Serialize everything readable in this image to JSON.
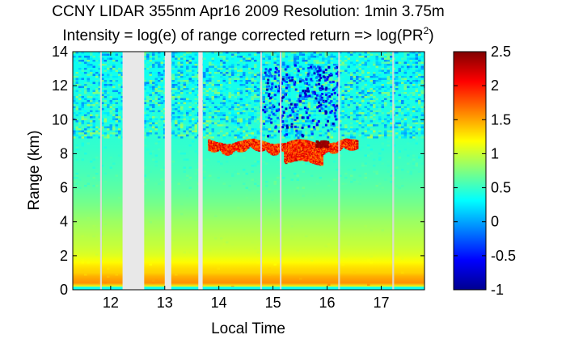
{
  "chart_data": {
    "type": "heatmap",
    "title_line1": "CCNY LIDAR 355nm Apr16 2009 Resolution: 1min 3.75m",
    "title_line2_prefix": "Intensity = log(e) of range corrected return => log(PR",
    "title_line2_superscript": "2",
    "title_line2_suffix": ")",
    "xlabel": "Local Time",
    "ylabel": "Range (km)",
    "xlim": [
      11.3,
      17.8
    ],
    "ylim": [
      0,
      14
    ],
    "xticks": [
      12,
      13,
      14,
      15,
      16,
      17
    ],
    "xtick_labels": [
      "12",
      "13",
      "14",
      "15",
      "16",
      "17"
    ],
    "yticks": [
      0,
      2,
      4,
      6,
      8,
      10,
      12,
      14
    ],
    "ytick_labels": [
      "0",
      "2",
      "4",
      "6",
      "8",
      "10",
      "12",
      "14"
    ],
    "colorbar": {
      "clim": [
        -1,
        2.5
      ],
      "ticks": [
        -1,
        -0.5,
        0,
        0.5,
        1,
        1.5,
        2,
        2.5
      ],
      "tick_labels": [
        "-1",
        "-0.5",
        "0",
        "0.5",
        "1",
        "1.5",
        "2",
        "2.5"
      ],
      "colormap": "jet"
    },
    "data_gaps_hours": [
      [
        12.22,
        12.62
      ],
      [
        13.0,
        13.12
      ],
      [
        13.62,
        13.7
      ]
    ],
    "thin_gaps_hours": [
      11.82,
      14.78,
      15.14,
      16.22,
      17.22
    ],
    "cloud_layer": {
      "time_range": [
        13.8,
        16.55
      ],
      "base_km": 7.4,
      "top_km": 8.8,
      "peak_value": 2.5
    },
    "intensity_profile": {
      "altitude_km": [
        0.0,
        0.1,
        0.25,
        0.5,
        0.8,
        1.0,
        1.3,
        1.6,
        2.0,
        2.5,
        3.0,
        4.0,
        5.0,
        6.0,
        7.0,
        8.0,
        9.0,
        10.0,
        12.0,
        14.0
      ],
      "value": [
        0.5,
        0.1,
        1.6,
        1.55,
        1.45,
        1.35,
        1.3,
        1.2,
        1.08,
        1.0,
        0.95,
        0.85,
        0.72,
        0.62,
        0.55,
        0.5,
        0.46,
        0.43,
        0.38,
        0.35
      ]
    }
  }
}
